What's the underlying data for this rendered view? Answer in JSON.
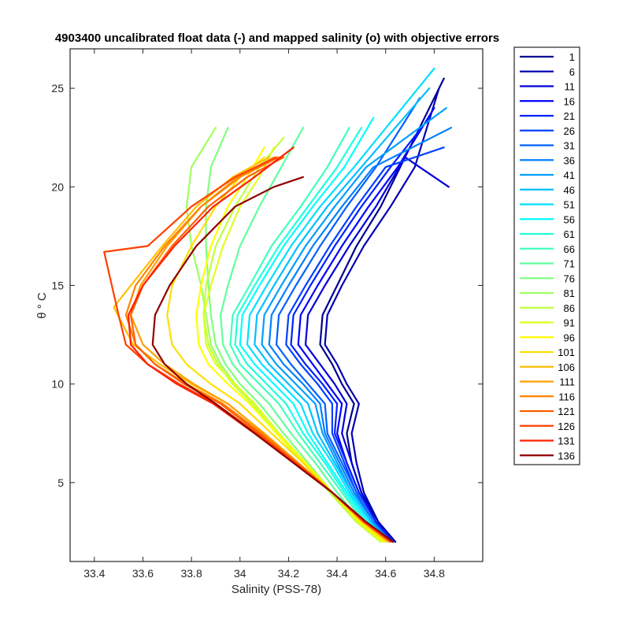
{
  "chart_data": {
    "type": "line",
    "title": "4903400 uncalibrated float data (-) and mapped salinity (o) with objective errors",
    "xlabel": "Salinity (PSS-78)",
    "ylabel": "θ ° C",
    "xlim": [
      33.3,
      35.0
    ],
    "ylim": [
      1.0,
      27.0
    ],
    "xticks": [
      33.4,
      33.6,
      33.8,
      34.0,
      34.2,
      34.4,
      34.6,
      34.8
    ],
    "xtick_labels": [
      "33.4",
      "33.6",
      "33.8",
      "34",
      "34.2",
      "34.4",
      "34.6",
      "34.8"
    ],
    "yticks": [
      5,
      10,
      15,
      20,
      25
    ],
    "ytick_labels": [
      "5",
      "10",
      "15",
      "20",
      "25"
    ],
    "grid": false,
    "legend_position": "outside-right",
    "series": [
      {
        "name": "1",
        "color": "#00008f",
        "x": [
          34.64,
          34.57,
          34.5,
          34.46,
          34.44,
          34.47,
          34.42,
          34.38,
          34.33,
          34.34,
          34.4,
          34.48,
          34.58,
          34.68,
          34.84
        ],
        "y": [
          2.0,
          3.0,
          4.5,
          6.0,
          7.5,
          9.0,
          10.0,
          11.0,
          12.0,
          13.5,
          15.0,
          17.0,
          19.0,
          21.5,
          25.5
        ]
      },
      {
        "name": "6",
        "color": "#0000b3",
        "x": [
          34.64,
          34.57,
          34.51,
          34.48,
          34.46,
          34.49,
          34.44,
          34.4,
          34.35,
          34.36,
          34.42,
          34.51,
          34.62,
          34.72,
          34.82
        ],
        "y": [
          2.0,
          3.0,
          4.5,
          6.0,
          7.5,
          9.0,
          10.0,
          11.0,
          12.0,
          13.5,
          15.0,
          17.0,
          19.0,
          21.0,
          25.0
        ]
      },
      {
        "name": "11",
        "color": "#0000d8",
        "x": [
          34.63,
          34.56,
          34.5,
          34.46,
          34.42,
          34.44,
          34.39,
          34.33,
          34.27,
          34.28,
          34.35,
          34.45,
          34.56,
          34.68,
          34.86
        ],
        "y": [
          2.0,
          3.0,
          4.5,
          6.0,
          7.5,
          9.0,
          10.0,
          11.0,
          12.0,
          13.5,
          15.0,
          17.0,
          19.0,
          21.5,
          20.0
        ]
      },
      {
        "name": "16",
        "color": "#0000ff",
        "x": [
          34.63,
          34.56,
          34.49,
          34.44,
          34.4,
          34.42,
          34.36,
          34.3,
          34.24,
          34.25,
          34.32,
          34.42,
          34.53,
          34.65,
          34.8
        ],
        "y": [
          2.0,
          3.0,
          4.5,
          6.0,
          7.5,
          9.0,
          10.0,
          11.0,
          12.0,
          13.5,
          15.0,
          17.0,
          19.0,
          21.0,
          24.0
        ]
      },
      {
        "name": "21",
        "color": "#0020ff",
        "x": [
          34.63,
          34.56,
          34.49,
          34.44,
          34.39,
          34.4,
          34.34,
          34.27,
          34.21,
          34.22,
          34.29,
          34.39,
          34.5,
          34.62,
          34.78
        ],
        "y": [
          2.0,
          3.0,
          4.5,
          6.0,
          7.5,
          9.0,
          10.0,
          11.0,
          12.0,
          13.5,
          15.0,
          17.0,
          19.0,
          21.0,
          23.5
        ]
      },
      {
        "name": "26",
        "color": "#0040ff",
        "x": [
          34.62,
          34.55,
          34.48,
          34.43,
          34.38,
          34.38,
          34.32,
          34.25,
          34.19,
          34.2,
          34.27,
          34.37,
          34.48,
          34.6,
          34.84
        ],
        "y": [
          2.0,
          3.0,
          4.5,
          6.0,
          7.5,
          9.0,
          10.0,
          11.0,
          12.0,
          13.5,
          15.0,
          17.0,
          19.0,
          21.0,
          22.0
        ]
      },
      {
        "name": "31",
        "color": "#0060ff",
        "x": [
          34.62,
          34.55,
          34.48,
          34.42,
          34.36,
          34.35,
          34.28,
          34.21,
          34.15,
          34.16,
          34.23,
          34.33,
          34.44,
          34.56,
          34.74
        ],
        "y": [
          2.0,
          3.0,
          4.5,
          6.0,
          7.5,
          9.0,
          10.0,
          11.0,
          12.0,
          13.5,
          15.0,
          17.0,
          19.0,
          21.0,
          24.5
        ]
      },
      {
        "name": "36",
        "color": "#0080ff",
        "x": [
          34.62,
          34.55,
          34.47,
          34.41,
          34.35,
          34.33,
          34.26,
          34.18,
          34.12,
          34.13,
          34.2,
          34.3,
          34.42,
          34.55,
          34.87
        ],
        "y": [
          2.0,
          3.0,
          4.5,
          6.0,
          7.5,
          9.0,
          10.0,
          11.0,
          12.0,
          13.5,
          15.0,
          17.0,
          19.0,
          21.0,
          23.0
        ]
      },
      {
        "name": "41",
        "color": "#009fff",
        "x": [
          34.61,
          34.54,
          34.46,
          34.4,
          34.34,
          34.31,
          34.23,
          34.15,
          34.09,
          34.1,
          34.17,
          34.27,
          34.39,
          34.52,
          34.85
        ],
        "y": [
          2.0,
          3.0,
          4.5,
          6.0,
          7.5,
          9.0,
          10.0,
          11.0,
          12.0,
          13.5,
          15.0,
          17.0,
          19.0,
          21.0,
          24.0
        ]
      },
      {
        "name": "46",
        "color": "#00bfff",
        "x": [
          34.61,
          34.54,
          34.46,
          34.39,
          34.32,
          34.28,
          34.2,
          34.12,
          34.06,
          34.07,
          34.14,
          34.24,
          34.36,
          34.5,
          34.78
        ],
        "y": [
          2.0,
          3.0,
          4.5,
          6.0,
          7.5,
          9.0,
          10.0,
          11.0,
          12.0,
          13.5,
          15.0,
          17.0,
          19.0,
          21.0,
          25.0
        ]
      },
      {
        "name": "51",
        "color": "#00dfff",
        "x": [
          34.61,
          34.53,
          34.45,
          34.38,
          34.3,
          34.25,
          34.17,
          34.09,
          34.03,
          34.04,
          34.11,
          34.21,
          34.33,
          34.47,
          34.8
        ],
        "y": [
          2.0,
          3.0,
          4.5,
          6.0,
          7.5,
          9.0,
          10.0,
          11.0,
          12.0,
          13.5,
          15.0,
          17.0,
          19.0,
          21.0,
          26.0
        ]
      },
      {
        "name": "56",
        "color": "#00ffff",
        "x": [
          34.6,
          34.53,
          34.44,
          34.36,
          34.28,
          34.22,
          34.14,
          34.06,
          34.0,
          34.01,
          34.08,
          34.18,
          34.3,
          34.43,
          34.55
        ],
        "y": [
          2.0,
          3.0,
          4.5,
          6.0,
          7.5,
          9.0,
          10.0,
          11.0,
          12.0,
          13.5,
          15.0,
          17.0,
          19.0,
          21.0,
          23.5
        ]
      },
      {
        "name": "61",
        "color": "#20ffdf",
        "x": [
          34.6,
          34.52,
          34.43,
          34.35,
          34.26,
          34.19,
          34.11,
          34.03,
          33.98,
          33.99,
          34.06,
          34.16,
          34.28,
          34.4,
          34.5
        ],
        "y": [
          2.0,
          3.0,
          4.5,
          6.0,
          7.5,
          9.0,
          10.0,
          11.0,
          12.0,
          13.5,
          15.0,
          17.0,
          19.0,
          21.0,
          23.0
        ]
      },
      {
        "name": "66",
        "color": "#40ffbf",
        "x": [
          34.59,
          34.51,
          34.42,
          34.33,
          34.24,
          34.16,
          34.08,
          34.0,
          33.96,
          33.97,
          34.04,
          34.13,
          34.25,
          34.36,
          34.45
        ],
        "y": [
          2.0,
          3.0,
          4.5,
          6.0,
          7.5,
          9.0,
          10.0,
          11.0,
          12.0,
          13.5,
          15.0,
          17.0,
          19.0,
          21.0,
          23.0
        ]
      },
      {
        "name": "71",
        "color": "#60ff9f",
        "x": [
          34.59,
          34.5,
          34.4,
          34.31,
          34.21,
          34.12,
          34.04,
          33.97,
          33.93,
          33.92,
          33.95,
          34.0,
          34.08,
          34.17,
          34.26
        ],
        "y": [
          2.0,
          3.0,
          4.5,
          6.0,
          7.5,
          9.0,
          10.0,
          11.0,
          12.0,
          13.5,
          15.0,
          17.0,
          19.0,
          21.0,
          23.0
        ]
      },
      {
        "name": "76",
        "color": "#80ff80",
        "x": [
          34.58,
          34.49,
          34.38,
          34.28,
          34.18,
          34.08,
          34.0,
          33.94,
          33.9,
          33.88,
          33.87,
          33.86,
          33.86,
          33.88,
          33.95
        ],
        "y": [
          2.0,
          3.0,
          4.5,
          6.0,
          7.5,
          9.0,
          10.0,
          11.0,
          12.0,
          13.5,
          15.0,
          17.0,
          19.0,
          21.0,
          23.0
        ]
      },
      {
        "name": "81",
        "color": "#9fff60",
        "x": [
          34.58,
          34.48,
          34.37,
          34.27,
          34.16,
          34.06,
          33.98,
          33.92,
          33.88,
          33.86,
          33.84,
          33.8,
          33.78,
          33.8,
          33.9
        ],
        "y": [
          2.0,
          3.0,
          4.5,
          6.0,
          7.5,
          9.0,
          10.0,
          11.0,
          12.0,
          13.5,
          15.0,
          17.0,
          19.0,
          21.0,
          23.0
        ]
      },
      {
        "name": "86",
        "color": "#bfff40",
        "x": [
          34.58,
          34.48,
          34.37,
          34.26,
          34.15,
          34.05,
          33.97,
          33.91,
          33.87,
          33.85,
          33.86,
          33.9,
          33.98,
          34.08,
          34.18
        ],
        "y": [
          2.0,
          3.0,
          4.5,
          6.0,
          7.5,
          9.0,
          10.0,
          11.0,
          12.0,
          13.5,
          15.0,
          17.0,
          19.0,
          21.0,
          22.5
        ]
      },
      {
        "name": "91",
        "color": "#dfff20",
        "x": [
          34.59,
          34.49,
          34.38,
          34.27,
          34.16,
          34.06,
          33.98,
          33.9,
          33.86,
          33.85,
          33.88,
          33.93,
          34.0,
          34.08,
          34.14
        ],
        "y": [
          2.0,
          3.0,
          4.5,
          6.0,
          7.5,
          9.0,
          10.0,
          11.0,
          12.0,
          13.5,
          15.0,
          17.0,
          19.0,
          20.5,
          22.0
        ]
      },
      {
        "name": "96",
        "color": "#ffff00",
        "x": [
          34.59,
          34.49,
          34.38,
          34.27,
          34.15,
          34.04,
          33.95,
          33.87,
          33.83,
          33.82,
          33.84,
          33.88,
          33.95,
          34.03,
          34.1
        ],
        "y": [
          2.0,
          3.0,
          4.5,
          6.0,
          7.5,
          9.0,
          10.0,
          11.0,
          12.0,
          13.5,
          15.0,
          17.0,
          19.0,
          20.5,
          22.0
        ]
      },
      {
        "name": "101",
        "color": "#ffdf00",
        "x": [
          34.6,
          34.5,
          34.38,
          34.26,
          34.13,
          34.0,
          33.88,
          33.78,
          33.72,
          33.7,
          33.72,
          33.8,
          33.9,
          34.0,
          34.1
        ],
        "y": [
          2.0,
          3.0,
          4.5,
          6.0,
          7.5,
          9.0,
          10.0,
          11.0,
          12.0,
          13.5,
          15.0,
          17.0,
          19.0,
          20.5,
          21.5
        ]
      },
      {
        "name": "106",
        "color": "#ffbf00",
        "x": [
          34.61,
          34.51,
          34.38,
          34.24,
          34.1,
          33.95,
          33.8,
          33.67,
          33.56,
          33.48,
          33.55,
          33.68,
          33.82,
          33.97,
          34.12
        ],
        "y": [
          2.0,
          3.0,
          4.5,
          6.0,
          7.5,
          9.0,
          10.0,
          11.0,
          12.0,
          13.9,
          15.0,
          17.0,
          19.0,
          20.5,
          21.5
        ]
      },
      {
        "name": "111",
        "color": "#ff9f00",
        "x": [
          34.62,
          34.51,
          34.38,
          34.24,
          34.1,
          33.95,
          33.81,
          33.69,
          33.6,
          33.55,
          33.59,
          33.7,
          33.84,
          33.99,
          34.14
        ],
        "y": [
          2.0,
          3.0,
          4.5,
          6.0,
          7.5,
          9.0,
          10.0,
          11.0,
          12.0,
          13.5,
          15.0,
          17.0,
          19.0,
          20.5,
          21.5
        ]
      },
      {
        "name": "116",
        "color": "#ff8000",
        "x": [
          34.62,
          34.51,
          34.38,
          34.24,
          34.09,
          33.93,
          33.78,
          33.65,
          33.57,
          33.53,
          33.57,
          33.69,
          33.84,
          34.0,
          34.16
        ],
        "y": [
          2.0,
          3.0,
          4.5,
          6.0,
          7.5,
          9.0,
          10.0,
          11.0,
          12.0,
          13.5,
          15.0,
          17.0,
          19.0,
          20.5,
          21.5
        ]
      },
      {
        "name": "121",
        "color": "#ff6000",
        "x": [
          34.62,
          34.51,
          34.38,
          34.23,
          34.08,
          33.92,
          33.77,
          33.65,
          33.57,
          33.55,
          33.6,
          33.72,
          33.87,
          34.03,
          34.18
        ],
        "y": [
          2.0,
          3.0,
          4.5,
          6.0,
          7.5,
          9.0,
          10.0,
          11.0,
          12.0,
          13.5,
          15.0,
          17.0,
          19.0,
          20.5,
          21.5
        ]
      },
      {
        "name": "126",
        "color": "#ff4000",
        "x": [
          34.62,
          34.51,
          34.38,
          34.23,
          34.07,
          33.9,
          33.75,
          33.62,
          33.53,
          33.5,
          33.44,
          33.62,
          33.8,
          33.98,
          34.15
        ],
        "y": [
          2.0,
          3.0,
          4.5,
          6.0,
          7.5,
          9.0,
          10.0,
          11.0,
          12.0,
          13.5,
          16.7,
          17.0,
          19.0,
          20.5,
          21.5
        ]
      },
      {
        "name": "131",
        "color": "#ff2000",
        "x": [
          34.63,
          34.52,
          34.38,
          34.22,
          34.06,
          33.89,
          33.74,
          33.62,
          33.55,
          33.54,
          33.6,
          33.73,
          33.89,
          34.06,
          34.22
        ],
        "y": [
          2.0,
          3.0,
          4.5,
          6.0,
          7.5,
          9.0,
          10.0,
          11.0,
          12.0,
          13.5,
          15.0,
          17.0,
          19.0,
          20.5,
          22.0
        ]
      },
      {
        "name": "136",
        "color": "#8f0000",
        "x": [
          34.63,
          34.52,
          34.38,
          34.22,
          34.06,
          33.9,
          33.78,
          33.69,
          33.64,
          33.65,
          33.71,
          33.82,
          33.98,
          34.14,
          34.26
        ],
        "y": [
          2.0,
          3.0,
          4.5,
          6.0,
          7.5,
          9.0,
          10.0,
          11.0,
          12.0,
          13.5,
          15.0,
          17.0,
          19.0,
          20.0,
          20.5
        ]
      }
    ]
  }
}
